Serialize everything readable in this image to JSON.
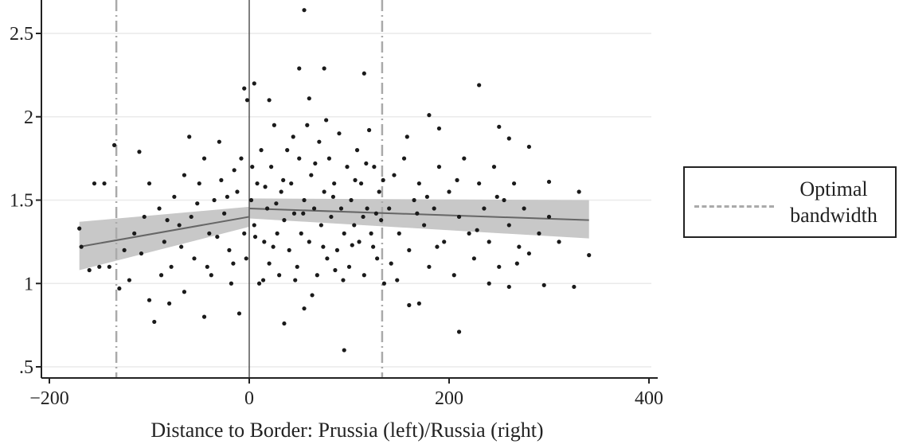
{
  "chart_data": {
    "type": "scatter",
    "title": "",
    "xlabel": "Distance to Border: Prussia (left)/Russia (right)",
    "ylabel": "",
    "xlim": [
      -200,
      400
    ],
    "ylim": [
      0.45,
      2.7
    ],
    "x_ticks": [
      -200,
      0,
      200,
      400
    ],
    "x_tick_labels": [
      "−200",
      "0",
      "200",
      "400"
    ],
    "y_ticks": [
      0.5,
      1,
      1.5,
      2,
      2.5
    ],
    "y_tick_labels": [
      ".5",
      "1",
      "1.5",
      "2",
      "2.5"
    ],
    "grid": "horizontal",
    "legend": {
      "placement": "right",
      "entries": [
        {
          "label_line1": "Optimal",
          "label_line2": "bandwidth",
          "style": "dash-dot"
        }
      ]
    },
    "border_line_x": 0,
    "bandwidth_lines_x": [
      -133,
      133
    ],
    "fit": {
      "left": {
        "x": [
          -170,
          0
        ],
        "y": [
          1.22,
          1.4
        ],
        "ci_low": [
          1.08,
          1.34
        ],
        "ci_high": [
          1.37,
          1.46
        ]
      },
      "right": {
        "x": [
          0,
          340
        ],
        "y": [
          1.45,
          1.38
        ],
        "ci_low": [
          1.39,
          1.27
        ],
        "ci_high": [
          1.51,
          1.5
        ]
      }
    },
    "points": [
      [
        55,
        2.64
      ],
      [
        50,
        2.29
      ],
      [
        75,
        2.29
      ],
      [
        115,
        2.26
      ],
      [
        -5,
        2.17
      ],
      [
        5,
        2.2
      ],
      [
        230,
        2.19
      ],
      [
        60,
        2.11
      ],
      [
        20,
        2.1
      ],
      [
        -2,
        2.1
      ],
      [
        -135,
        1.83
      ],
      [
        -110,
        1.79
      ],
      [
        -155,
        1.6
      ],
      [
        -145,
        1.6
      ],
      [
        180,
        2.01
      ],
      [
        190,
        1.93
      ],
      [
        250,
        1.94
      ],
      [
        260,
        1.87
      ],
      [
        280,
        1.82
      ],
      [
        300,
        1.61
      ],
      [
        330,
        1.55
      ],
      [
        -160,
        1.08
      ],
      [
        -140,
        1.1
      ],
      [
        -130,
        0.97
      ],
      [
        -120,
        1.02
      ],
      [
        -100,
        0.9
      ],
      [
        -95,
        0.77
      ],
      [
        -80,
        0.88
      ],
      [
        -65,
        0.95
      ],
      [
        -45,
        0.8
      ],
      [
        -10,
        0.82
      ],
      [
        95,
        0.6
      ],
      [
        55,
        0.85
      ],
      [
        35,
        0.76
      ],
      [
        210,
        0.71
      ],
      [
        160,
        0.87
      ],
      [
        170,
        0.88
      ],
      [
        240,
        1.0
      ],
      [
        260,
        0.98
      ],
      [
        295,
        0.99
      ],
      [
        325,
        0.98
      ],
      [
        340,
        1.17
      ],
      [
        -170,
        1.33
      ],
      [
        -168,
        1.22
      ],
      [
        -150,
        1.1
      ],
      [
        -125,
        1.2
      ],
      [
        -115,
        1.3
      ],
      [
        -105,
        1.4
      ],
      [
        -100,
        1.6
      ],
      [
        -90,
        1.45
      ],
      [
        -85,
        1.25
      ],
      [
        -75,
        1.52
      ],
      [
        -70,
        1.35
      ],
      [
        -65,
        1.65
      ],
      [
        -60,
        1.88
      ],
      [
        -55,
        1.15
      ],
      [
        -50,
        1.6
      ],
      [
        -45,
        1.75
      ],
      [
        -40,
        1.3
      ],
      [
        -35,
        1.5
      ],
      [
        -30,
        1.85
      ],
      [
        -25,
        1.42
      ],
      [
        -20,
        1.2
      ],
      [
        -15,
        1.68
      ],
      [
        -12,
        1.55
      ],
      [
        -8,
        1.75
      ],
      [
        -5,
        1.3
      ],
      [
        -3,
        1.15
      ],
      [
        2,
        1.5
      ],
      [
        5,
        1.35
      ],
      [
        8,
        1.6
      ],
      [
        10,
        1.0
      ],
      [
        12,
        1.8
      ],
      [
        15,
        1.25
      ],
      [
        18,
        1.45
      ],
      [
        20,
        1.12
      ],
      [
        22,
        1.7
      ],
      [
        25,
        1.95
      ],
      [
        28,
        1.3
      ],
      [
        30,
        1.05
      ],
      [
        32,
        1.55
      ],
      [
        35,
        1.38
      ],
      [
        38,
        1.8
      ],
      [
        40,
        1.2
      ],
      [
        42,
        1.6
      ],
      [
        45,
        1.42
      ],
      [
        48,
        1.1
      ],
      [
        50,
        1.75
      ],
      [
        52,
        1.3
      ],
      [
        55,
        1.5
      ],
      [
        58,
        1.95
      ],
      [
        60,
        1.25
      ],
      [
        62,
        1.65
      ],
      [
        65,
        1.45
      ],
      [
        68,
        1.05
      ],
      [
        70,
        1.85
      ],
      [
        72,
        1.35
      ],
      [
        75,
        1.55
      ],
      [
        78,
        1.15
      ],
      [
        80,
        1.75
      ],
      [
        82,
        1.4
      ],
      [
        85,
        1.6
      ],
      [
        88,
        1.2
      ],
      [
        90,
        1.9
      ],
      [
        92,
        1.45
      ],
      [
        95,
        1.3
      ],
      [
        98,
        1.7
      ],
      [
        100,
        1.1
      ],
      [
        102,
        1.5
      ],
      [
        105,
        1.35
      ],
      [
        108,
        1.8
      ],
      [
        110,
        1.25
      ],
      [
        112,
        1.6
      ],
      [
        115,
        1.05
      ],
      [
        118,
        1.45
      ],
      [
        120,
        1.92
      ],
      [
        122,
        1.3
      ],
      [
        125,
        1.7
      ],
      [
        128,
        1.15
      ],
      [
        130,
        1.55
      ],
      [
        132,
        1.38
      ],
      [
        135,
        1.0
      ],
      [
        140,
        1.45
      ],
      [
        145,
        1.65
      ],
      [
        150,
        1.3
      ],
      [
        155,
        1.75
      ],
      [
        160,
        1.2
      ],
      [
        165,
        1.5
      ],
      [
        170,
        1.6
      ],
      [
        175,
        1.35
      ],
      [
        180,
        1.1
      ],
      [
        185,
        1.45
      ],
      [
        190,
        1.7
      ],
      [
        195,
        1.25
      ],
      [
        200,
        1.55
      ],
      [
        205,
        1.05
      ],
      [
        210,
        1.4
      ],
      [
        215,
        1.75
      ],
      [
        220,
        1.3
      ],
      [
        225,
        1.15
      ],
      [
        230,
        1.6
      ],
      [
        235,
        1.45
      ],
      [
        240,
        1.25
      ],
      [
        245,
        1.7
      ],
      [
        250,
        1.1
      ],
      [
        255,
        1.5
      ],
      [
        260,
        1.35
      ],
      [
        265,
        1.6
      ],
      [
        270,
        1.22
      ],
      [
        275,
        1.45
      ],
      [
        280,
        1.18
      ],
      [
        290,
        1.3
      ],
      [
        300,
        1.4
      ],
      [
        310,
        1.25
      ],
      [
        -78,
        1.1
      ],
      [
        -58,
        1.4
      ],
      [
        -38,
        1.05
      ],
      [
        -28,
        1.62
      ],
      [
        -18,
        1.0
      ],
      [
        3,
        1.7
      ],
      [
        14,
        1.02
      ],
      [
        27,
        1.48
      ],
      [
        44,
        1.88
      ],
      [
        63,
        0.93
      ],
      [
        77,
        1.98
      ],
      [
        86,
        1.08
      ],
      [
        103,
        1.23
      ],
      [
        117,
        1.72
      ],
      [
        127,
        1.42
      ],
      [
        142,
        1.12
      ],
      [
        158,
        1.88
      ],
      [
        178,
        1.52
      ],
      [
        -88,
        1.05
      ],
      [
        -82,
        1.38
      ],
      [
        -68,
        1.22
      ],
      [
        -52,
        1.48
      ],
      [
        -42,
        1.1
      ],
      [
        -32,
        1.28
      ],
      [
        -22,
        1.52
      ],
      [
        -16,
        1.12
      ],
      [
        6,
        1.28
      ],
      [
        16,
        1.58
      ],
      [
        24,
        1.22
      ],
      [
        34,
        1.62
      ],
      [
        46,
        1.02
      ],
      [
        54,
        1.42
      ],
      [
        66,
        1.72
      ],
      [
        74,
        1.22
      ],
      [
        84,
        1.52
      ],
      [
        94,
        1.02
      ],
      [
        106,
        1.62
      ],
      [
        114,
        1.4
      ],
      [
        124,
        1.22
      ],
      [
        134,
        1.62
      ],
      [
        148,
        1.02
      ],
      [
        168,
        1.42
      ],
      [
        188,
        1.22
      ],
      [
        208,
        1.62
      ],
      [
        228,
        1.32
      ],
      [
        248,
        1.52
      ],
      [
        268,
        1.12
      ],
      [
        -108,
        1.18
      ]
    ]
  }
}
